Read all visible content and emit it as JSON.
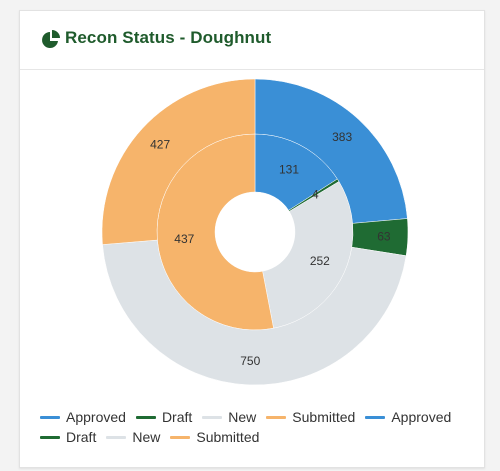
{
  "card": {
    "title": "Recon Status - Doughnut",
    "icon": "pie-chart-icon",
    "accent": "#1f5b2c"
  },
  "chart_data": {
    "type": "doughnut",
    "title": "Recon Status - Doughnut",
    "grid": false,
    "legend_position": "bottom",
    "colors": {
      "Approved": "#3a8fd6",
      "Draft": "#1f6b33",
      "New": "#dde2e6",
      "Submitted": "#f6b46b"
    },
    "rings": [
      {
        "ring": "inner",
        "series": [
          {
            "name": "Approved",
            "value": 131
          },
          {
            "name": "Draft",
            "value": 4
          },
          {
            "name": "New",
            "value": 252
          },
          {
            "name": "Submitted",
            "value": 437
          }
        ]
      },
      {
        "ring": "outer",
        "series": [
          {
            "name": "Approved",
            "value": 383
          },
          {
            "name": "Draft",
            "value": 63
          },
          {
            "name": "New",
            "value": 750
          },
          {
            "name": "Submitted",
            "value": 427
          }
        ]
      }
    ],
    "legend": [
      "Approved",
      "Draft",
      "New",
      "Submitted",
      "Approved",
      "Draft",
      "New",
      "Submitted"
    ]
  }
}
